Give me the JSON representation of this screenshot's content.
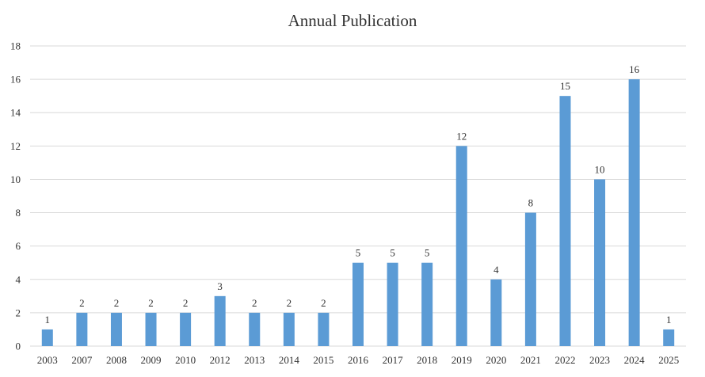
{
  "chart_data": {
    "type": "bar",
    "title": "Annual Publication",
    "xlabel": "",
    "ylabel": "",
    "categories": [
      "2003",
      "2007",
      "2008",
      "2009",
      "2010",
      "2012",
      "2013",
      "2014",
      "2015",
      "2016",
      "2017",
      "2018",
      "2019",
      "2020",
      "2021",
      "2022",
      "2023",
      "2024",
      "2025"
    ],
    "values": [
      1,
      2,
      2,
      2,
      2,
      3,
      2,
      2,
      2,
      5,
      5,
      5,
      12,
      4,
      8,
      15,
      10,
      16,
      1
    ],
    "ylim": [
      0,
      18
    ],
    "yticks": [
      0,
      2,
      4,
      6,
      8,
      10,
      12,
      14,
      16,
      18
    ],
    "grid": true,
    "data_labels": true,
    "legend": "none",
    "bar_color": "#5b9bd5",
    "grid_color": "#d9d9d9",
    "text_color": "#333333"
  }
}
